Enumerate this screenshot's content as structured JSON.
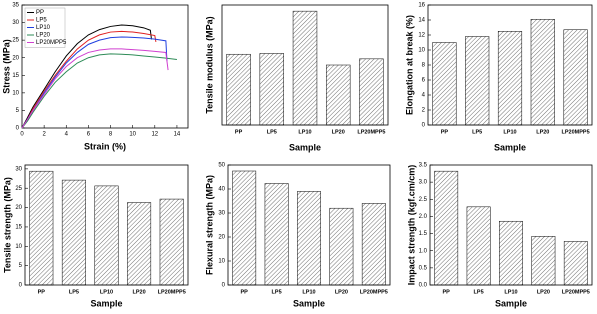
{
  "chart_data": [
    {
      "type": "line",
      "xlabel": "Strain (%)",
      "ylabel": "Stress (MPa)",
      "xlim": [
        0,
        15
      ],
      "xticks": [
        0,
        2,
        4,
        6,
        8,
        10,
        12,
        14
      ],
      "ylim": [
        0,
        35
      ],
      "yticks": [
        0,
        5,
        10,
        15,
        20,
        25,
        30,
        35
      ],
      "legend": "upper left",
      "series": [
        {
          "name": "PP",
          "color": "#000000",
          "x": [
            0,
            0.5,
            1,
            2,
            3,
            4,
            5,
            6,
            7,
            8,
            9,
            10,
            11,
            11.6,
            11.7
          ],
          "values": [
            0,
            3,
            6,
            11,
            16,
            20.5,
            24,
            26.5,
            28,
            28.9,
            29.3,
            29.1,
            28.5,
            27.8,
            25.2
          ]
        },
        {
          "name": "LP5",
          "color": "#e02020",
          "x": [
            0,
            0.5,
            1,
            2,
            3,
            4,
            5,
            6,
            7,
            8,
            9,
            10,
            11,
            12,
            12.1
          ],
          "values": [
            0,
            2.5,
            5.5,
            10.5,
            15,
            19,
            22.5,
            25,
            26.5,
            27.3,
            27.5,
            27.3,
            26.9,
            26.3,
            24.5
          ]
        },
        {
          "name": "LP10",
          "color": "#2040e0",
          "x": [
            0,
            0.5,
            1,
            2,
            3,
            4,
            5,
            6,
            7,
            8,
            9,
            10,
            11,
            12,
            13,
            13.1
          ],
          "values": [
            0,
            2.5,
            5,
            10,
            14.5,
            18.5,
            21.5,
            23.8,
            25,
            25.7,
            25.9,
            25.8,
            25.6,
            25.3,
            24.8,
            19
          ]
        },
        {
          "name": "LP20",
          "color": "#2e8b57",
          "x": [
            0,
            0.5,
            1,
            2,
            3,
            4,
            5,
            6,
            7,
            8,
            9,
            10,
            11,
            12,
            13,
            14
          ],
          "values": [
            0,
            2,
            4.5,
            9,
            13,
            16,
            18.5,
            20,
            20.8,
            21.1,
            21,
            20.8,
            20.5,
            20.2,
            19.9,
            19.5
          ]
        },
        {
          "name": "LP20MPP5",
          "color": "#d040d0",
          "x": [
            0,
            0.5,
            1,
            2,
            3,
            4,
            5,
            6,
            7,
            8,
            9,
            10,
            11,
            12,
            13,
            13.2
          ],
          "values": [
            0,
            2.5,
            5,
            9.5,
            14,
            17.5,
            20,
            21.5,
            22.2,
            22.5,
            22.5,
            22.3,
            22.1,
            21.8,
            21.5,
            16.5
          ]
        }
      ]
    },
    {
      "type": "bar",
      "xlabel": "Sample",
      "ylabel": "Tensile modulus (MPa)",
      "color": "#707070",
      "categories": [
        "PP",
        "LP5",
        "LP10",
        "LP20",
        "LP20MPP5"
      ],
      "values": [
        460,
        465,
        740,
        390,
        430
      ],
      "ylim": [
        0,
        780
      ]
    },
    {
      "type": "bar",
      "xlabel": "Sample",
      "ylabel": "Elongation at break (%)",
      "color": "#707070",
      "categories": [
        "PP",
        "LP5",
        "LP10",
        "LP20",
        "LP20MPP5"
      ],
      "values": [
        11,
        11.8,
        12.5,
        14.1,
        12.7
      ],
      "ylim": [
        0,
        16
      ],
      "yticks": [
        0,
        2,
        4,
        6,
        8,
        10,
        12,
        14,
        16
      ]
    },
    {
      "type": "bar",
      "xlabel": "Sample",
      "ylabel": "Tensile strength (MPa)",
      "color": "#707070",
      "categories": [
        "PP",
        "LP5",
        "LP10",
        "LP20",
        "LP20MPP5"
      ],
      "values": [
        29.4,
        27.1,
        25.6,
        21.3,
        22.2
      ],
      "ylim": [
        0,
        31
      ],
      "yticks": [
        0,
        5,
        10,
        15,
        20,
        25,
        30
      ]
    },
    {
      "type": "bar",
      "xlabel": "Sample",
      "ylabel": "Flexural strength (MPa)",
      "color": "#707070",
      "categories": [
        "PP",
        "LP5",
        "LP10",
        "LP20",
        "LP20MPP5"
      ],
      "values": [
        47.5,
        42.3,
        39,
        32,
        34
      ],
      "ylim": [
        0,
        50
      ],
      "yticks": [
        0,
        10,
        20,
        30,
        40,
        50
      ]
    },
    {
      "type": "bar",
      "xlabel": "Sample",
      "ylabel": "Impact strength (kgf.cm/cm)",
      "color": "#707070",
      "categories": [
        "PP",
        "LP5",
        "LP10",
        "LP20",
        "LP20MPP5"
      ],
      "values": [
        3.32,
        2.28,
        1.86,
        1.42,
        1.27
      ],
      "ylim": [
        0,
        3.5
      ],
      "yticks": [
        {
          "value": 0,
          "label": "0.0"
        },
        0.5,
        {
          "value": 1,
          "label": "1.0"
        },
        1.5,
        {
          "value": 2,
          "label": "2.0"
        },
        2.5,
        {
          "value": 3,
          "label": "3.0"
        },
        3.5
      ]
    }
  ]
}
